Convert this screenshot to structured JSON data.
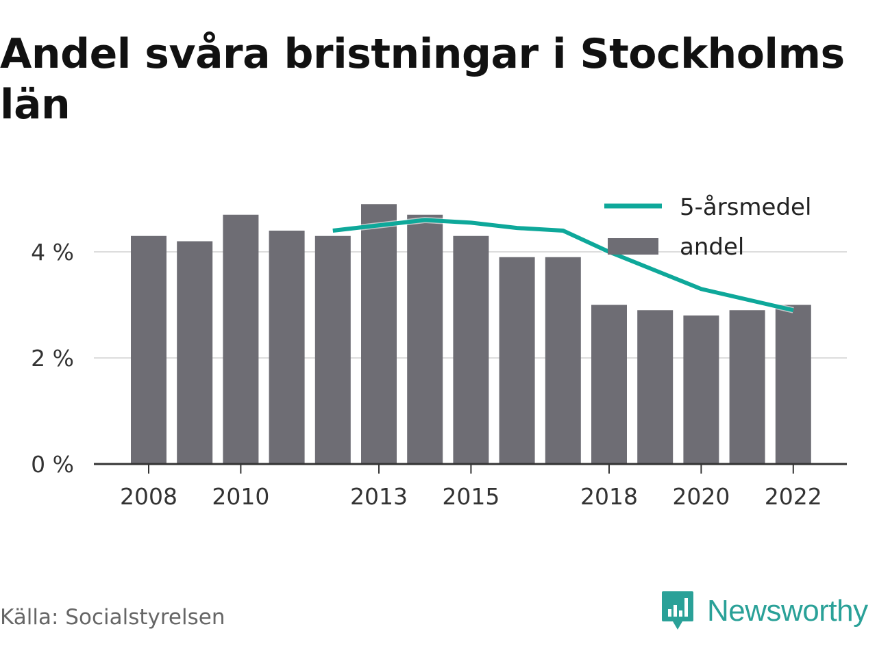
{
  "title": "Andel svåra bristningar i Stockholms län",
  "source": "Källa: Socialstyrelsen",
  "brand": {
    "name": "Newsworthy",
    "icon": "newsworthy-logo-icon",
    "color": "#2aa198"
  },
  "colors": {
    "bar": "#6e6d74",
    "line": "#0ea89a",
    "grid": "#dddddd",
    "axis": "#333333"
  },
  "chart_data": {
    "type": "bar",
    "title": "Andel svåra bristningar i Stockholms län",
    "x": [
      2008,
      2009,
      2010,
      2011,
      2012,
      2013,
      2014,
      2015,
      2016,
      2017,
      2018,
      2019,
      2020,
      2021,
      2022
    ],
    "x_ticks": [
      2008,
      2010,
      2013,
      2015,
      2018,
      2020,
      2022
    ],
    "x_tick_labels": [
      "2008",
      "2010",
      "2013",
      "2015",
      "2018",
      "2020",
      "2022"
    ],
    "y_ticks": [
      0,
      2,
      4
    ],
    "y_tick_labels": [
      "0 %",
      "2 %",
      "4 %"
    ],
    "ylim": [
      0,
      5.2
    ],
    "unit": "%",
    "grid": true,
    "legend": "top-right",
    "series": [
      {
        "name": "andel",
        "type": "bar",
        "color": "#6e6d74",
        "values": [
          4.3,
          4.2,
          4.7,
          4.4,
          4.3,
          4.9,
          4.7,
          4.3,
          3.9,
          3.9,
          3.0,
          2.9,
          2.8,
          2.9,
          3.0
        ]
      },
      {
        "name": "5-årsmedel",
        "type": "line",
        "color": "#0ea89a",
        "values": [
          null,
          null,
          null,
          null,
          4.4,
          4.5,
          4.6,
          4.55,
          4.45,
          4.4,
          4.0,
          3.65,
          3.3,
          3.1,
          2.9
        ]
      }
    ]
  }
}
